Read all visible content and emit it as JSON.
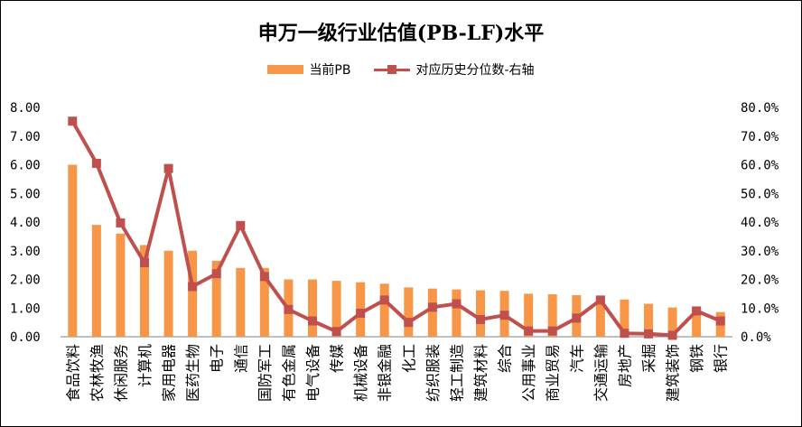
{
  "chart_data": {
    "type": "bar",
    "title": "申万一级行业估值(PB-LF)水平",
    "colors": {
      "bar": "#F79646",
      "line": "#C0504D",
      "axis": "#000000"
    },
    "legend": {
      "position": "top"
    },
    "grid": false,
    "categories": [
      "食品饮料",
      "农林牧渔",
      "休闲服务",
      "计算机",
      "家用电器",
      "医药生物",
      "电子",
      "通信",
      "国防军工",
      "有色金属",
      "电气设备",
      "传媒",
      "机械设备",
      "非银金融",
      "化工",
      "纺织服装",
      "轻工制造",
      "建筑材料",
      "综合",
      "公用事业",
      "商业贸易",
      "汽车",
      "交通运输",
      "房地产",
      "采掘",
      "建筑装饰",
      "钢铁",
      "银行"
    ],
    "series": [
      {
        "name": "当前PB",
        "type": "bar",
        "axis": "left",
        "values": [
          6.0,
          3.9,
          3.6,
          3.2,
          3.0,
          3.0,
          2.65,
          2.4,
          2.4,
          2.0,
          2.0,
          1.95,
          1.9,
          1.85,
          1.72,
          1.68,
          1.65,
          1.62,
          1.6,
          1.5,
          1.48,
          1.45,
          1.42,
          1.3,
          1.15,
          1.02,
          1.0,
          0.86
        ]
      },
      {
        "name": "对应历史分位数-右轴",
        "type": "line",
        "axis": "right",
        "values": [
          0.752,
          0.605,
          0.397,
          0.258,
          0.587,
          0.175,
          0.22,
          0.388,
          0.21,
          0.095,
          0.055,
          0.018,
          0.082,
          0.128,
          0.05,
          0.103,
          0.115,
          0.06,
          0.075,
          0.02,
          0.02,
          0.065,
          0.128,
          0.012,
          0.01,
          0.005,
          0.09,
          0.055
        ]
      }
    ],
    "y_left": {
      "min": 0,
      "max": 8,
      "step": 1,
      "ticks": [
        "0.00",
        "1.00",
        "2.00",
        "3.00",
        "4.00",
        "5.00",
        "6.00",
        "7.00",
        "8.00"
      ]
    },
    "y_right": {
      "min": 0,
      "max": 0.8,
      "step": 0.1,
      "ticks": [
        "0.0%",
        "10.0%",
        "20.0%",
        "30.0%",
        "40.0%",
        "50.0%",
        "60.0%",
        "70.0%",
        "80.0%"
      ]
    }
  }
}
